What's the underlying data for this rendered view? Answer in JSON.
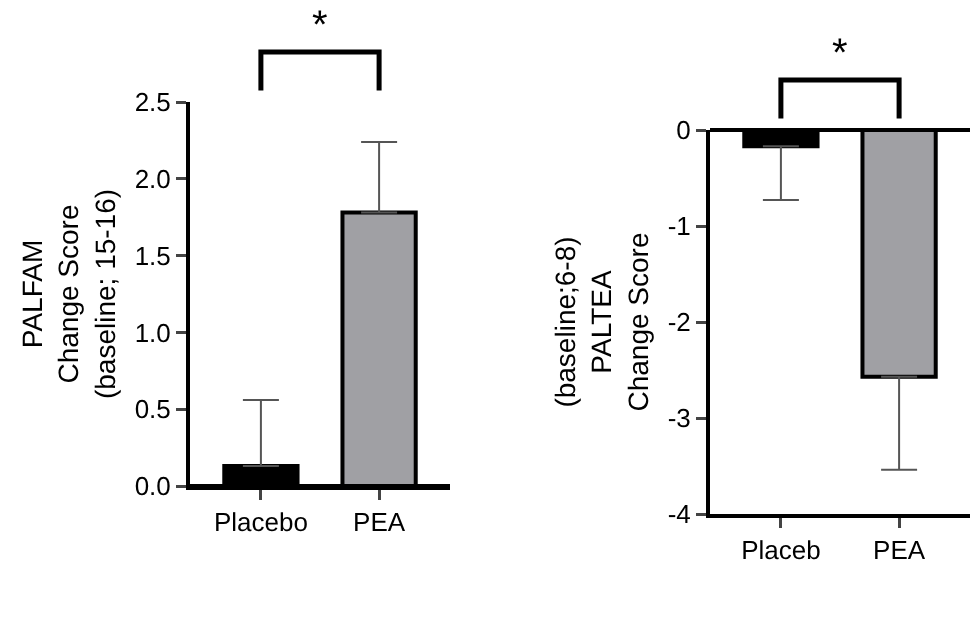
{
  "chart_data": [
    {
      "type": "bar",
      "ylabel": "PALFAM\nChange Score\n(baseline; 15-16)",
      "categories": [
        "Placebo",
        "PEA"
      ],
      "values": [
        0.13,
        1.78
      ],
      "colors": [
        "#000000",
        "#a0a0a4"
      ],
      "errors": [
        [
          0.13,
          0.56
        ],
        [
          1.78,
          2.24
        ]
      ],
      "ylim": [
        0,
        2.5
      ],
      "yticks": [
        {
          "value": 0,
          "label": "0.0"
        },
        {
          "value": 0.5,
          "label": "0.5"
        },
        {
          "value": 1,
          "label": "1.0"
        },
        {
          "value": 1.5,
          "label": "1.5"
        },
        {
          "value": 2,
          "label": "2.0"
        },
        {
          "value": 2.5,
          "label": "2.5"
        }
      ],
      "grid": false,
      "annotations": [
        "*"
      ]
    },
    {
      "type": "bar",
      "ylabel": "(baseline;6-8)\nPALTEA\nChange Score",
      "categories": [
        "Placeb",
        "PEA"
      ],
      "values": [
        -0.17,
        -2.57
      ],
      "colors": [
        "#000000",
        "#a0a0a4"
      ],
      "errors": [
        [
          -0.73,
          -0.17
        ],
        [
          -3.54,
          -2.57
        ]
      ],
      "ylim": [
        -4,
        0
      ],
      "yticks": [
        -4,
        -3,
        -2,
        -1,
        0
      ],
      "grid": false,
      "annotations": [
        "*"
      ]
    }
  ]
}
